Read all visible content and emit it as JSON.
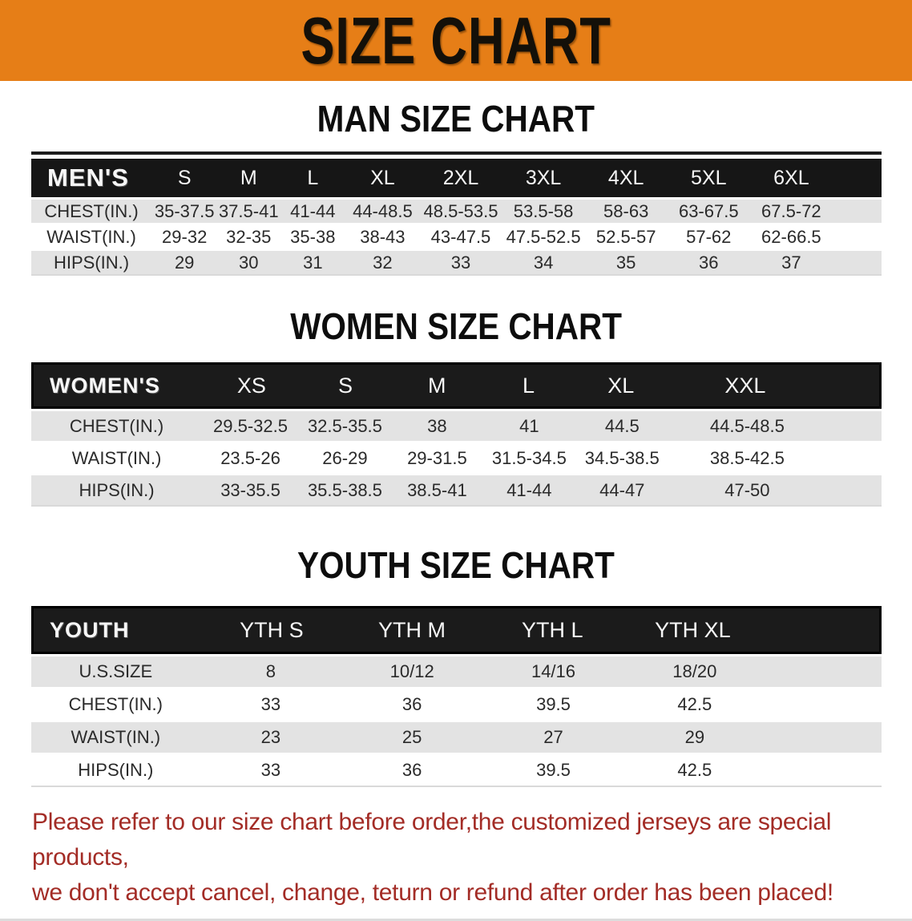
{
  "banner": {
    "title": "SIZE CHART"
  },
  "headings": {
    "men": "MAN SIZE CHART",
    "women": "WOMEN SIZE CHART",
    "youth": "YOUTH SIZE CHART"
  },
  "tables": {
    "men": {
      "header": [
        "MEN'S",
        "S",
        "M",
        "L",
        "XL",
        "2XL",
        "3XL",
        "4XL",
        "5XL",
        "6XL"
      ],
      "rows": [
        [
          "CHEST(IN.)",
          "35-37.5",
          "37.5-41",
          "41-44",
          "44-48.5",
          "48.5-53.5",
          "53.5-58",
          "58-63",
          "63-67.5",
          "67.5-72"
        ],
        [
          "WAIST(IN.)",
          "29-32",
          "32-35",
          "35-38",
          "38-43",
          "43-47.5",
          "47.5-52.5",
          "52.5-57",
          "57-62",
          "62-66.5"
        ],
        [
          "HIPS(IN.)",
          "29",
          "30",
          "31",
          "32",
          "33",
          "34",
          "35",
          "36",
          "37"
        ]
      ]
    },
    "women": {
      "header": [
        "WOMEN'S",
        "XS",
        "S",
        "M",
        "L",
        "XL",
        "XXL"
      ],
      "rows": [
        [
          "CHEST(IN.)",
          "29.5-32.5",
          "32.5-35.5",
          "38",
          "41",
          "44.5",
          "44.5-48.5"
        ],
        [
          "WAIST(IN.)",
          "23.5-26",
          "26-29",
          "29-31.5",
          "31.5-34.5",
          "34.5-38.5",
          "38.5-42.5"
        ],
        [
          "HIPS(IN.)",
          "33-35.5",
          "35.5-38.5",
          "38.5-41",
          "41-44",
          "44-47",
          "47-50"
        ]
      ]
    },
    "youth": {
      "header": [
        "YOUTH",
        "YTH S",
        "YTH M",
        "YTH L",
        "YTH XL"
      ],
      "rows": [
        [
          "U.S.SIZE",
          "8",
          "10/12",
          "14/16",
          "18/20"
        ],
        [
          "CHEST(IN.)",
          "33",
          "36",
          "39.5",
          "42.5"
        ],
        [
          "WAIST(IN.)",
          "23",
          "25",
          "27",
          "29"
        ],
        [
          "HIPS(IN.)",
          "33",
          "36",
          "39.5",
          "42.5"
        ]
      ]
    }
  },
  "disclaimer": {
    "line1": "Please refer to our size chart before order,the customized jerseys are special products,",
    "line2": "we don't accept cancel, change, teturn or refund after order has been placed!"
  },
  "colors": {
    "banner_bg": "#E67E17",
    "header_bar_bg": "#161616",
    "row_alt_bg": "#E3E3E3",
    "row_bg": "#FFFFFF",
    "disclaimer_text": "#A32C26"
  }
}
